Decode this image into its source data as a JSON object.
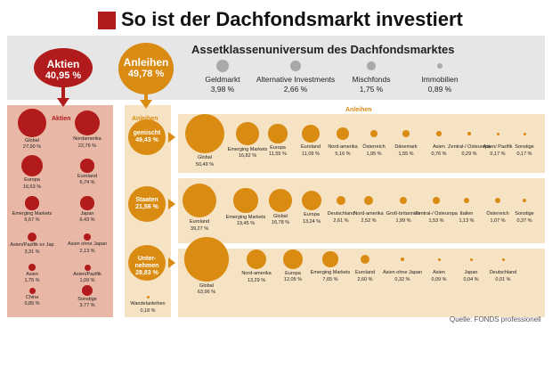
{
  "title": "So ist der Dachfondsmarkt investiert",
  "universe_title": "Assetklassenuniversum des Dachfondsmarktes",
  "source": "Quelle: FONDS professionell",
  "colors": {
    "red": "#b11b1b",
    "orange": "#d98b12",
    "gray": "#a9a9a9"
  },
  "main": [
    {
      "name": "Aktien",
      "value": "40,95 %"
    },
    {
      "name": "Anleihen",
      "value": "49,78 %"
    }
  ],
  "universe": [
    {
      "name": "Geldmarkt",
      "value": "3,98 %"
    },
    {
      "name": "Alternative Investments",
      "value": "2,66 %"
    },
    {
      "name": "Mischfonds",
      "value": "1,75 %"
    },
    {
      "name": "Immobilien",
      "value": "0,89 %"
    }
  ],
  "aktien_header": "Aktien",
  "anleihen_left_header": "Anleihen",
  "anleihen_row_header": "Anleihen",
  "chart_data": {
    "type": "bubble",
    "title": "So ist der Dachfondsmarkt investiert",
    "aktien": [
      {
        "name": "Global",
        "value": "27,90 %"
      },
      {
        "name": "Nordamerika",
        "value": "22,76 %"
      },
      {
        "name": "Europa",
        "value": "16,63 %"
      },
      {
        "name": "Euroland",
        "value": "6,74 %"
      },
      {
        "name": "Emerging Markets",
        "value": "6,67 %"
      },
      {
        "name": "Japan",
        "value": "6,43 %"
      },
      {
        "name": "Asien/Pazifik ex Jap",
        "value": "3,31 %"
      },
      {
        "name": "Asien ohne Japan",
        "value": "2,13 %"
      },
      {
        "name": "Asien",
        "value": "1,75 %"
      },
      {
        "name": "Asien/Pazifik",
        "value": "1,09 %"
      },
      {
        "name": "China",
        "value": "0,85 %"
      },
      {
        "name": "Sonstige",
        "value": "3,77 %"
      }
    ],
    "anleihen_groups": [
      {
        "name": "gemischt",
        "value": "49,43 %",
        "items": [
          {
            "name": "Global",
            "value": "50,49 %"
          },
          {
            "name": "Emerging Markets",
            "value": "16,82 %"
          },
          {
            "name": "Europa",
            "value": "11,55 %"
          },
          {
            "name": "Euroland",
            "value": "11,09 %"
          },
          {
            "name": "Nord-amerika",
            "value": "5,16 %"
          },
          {
            "name": "Österreich",
            "value": "1,95 %"
          },
          {
            "name": "Dänemark",
            "value": "1,55 %"
          },
          {
            "name": "Asien",
            "value": "0,76 %"
          },
          {
            "name": "Zentral-/ Osteuropa",
            "value": "0,29 %"
          },
          {
            "name": "Asien/ Pazifik",
            "value": "0,17 %"
          },
          {
            "name": "Sonstige",
            "value": "0,17 %"
          }
        ]
      },
      {
        "name": "Staaten",
        "value": "21,56 %",
        "items": [
          {
            "name": "Euroland",
            "value": "39,27 %"
          },
          {
            "name": "Emerging Markets",
            "value": "19,45 %"
          },
          {
            "name": "Global",
            "value": "16,78 %"
          },
          {
            "name": "Europa",
            "value": "13,24 %"
          },
          {
            "name": "Deutschland",
            "value": "2,61 %"
          },
          {
            "name": "Nord-amerika",
            "value": "2,52 %"
          },
          {
            "name": "Groß-britannien",
            "value": "1,99 %"
          },
          {
            "name": "Zentral-/ Osteuropa",
            "value": "1,53 %"
          },
          {
            "name": "Italien",
            "value": "1,13 %"
          },
          {
            "name": "Österreich",
            "value": "1,07 %"
          },
          {
            "name": "Sonstige",
            "value": "0,37 %"
          }
        ]
      },
      {
        "name": "Unter-nehmen",
        "value": "28,83 %",
        "items": [
          {
            "name": "Global",
            "value": "63,96 %"
          },
          {
            "name": "Nord-amerika",
            "value": "13,29 %"
          },
          {
            "name": "Europa",
            "value": "12,05 %"
          },
          {
            "name": "Emerging Markets",
            "value": "7,65 %"
          },
          {
            "name": "Euroland",
            "value": "2,60 %"
          },
          {
            "name": "Asien ohne Japan",
            "value": "0,32 %"
          },
          {
            "name": "Asien",
            "value": "0,09 %"
          },
          {
            "name": "Japan",
            "value": "0,04 %"
          },
          {
            "name": "Deutschland",
            "value": "0,01 %"
          }
        ]
      }
    ],
    "wandelanleihen": {
      "name": "Wandelanleihen",
      "value": "0,18 %"
    }
  }
}
